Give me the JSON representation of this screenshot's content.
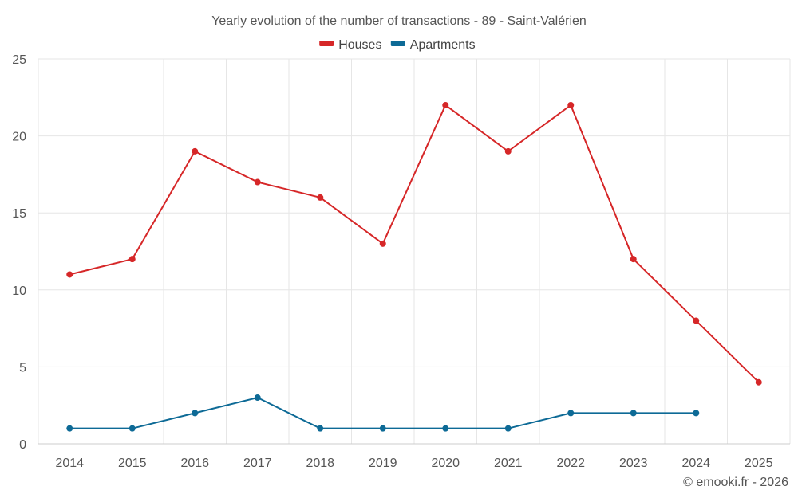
{
  "chart_data": {
    "type": "line",
    "title": "Yearly evolution of the number of transactions - 89 - Saint-Valérien",
    "xlabel": "",
    "ylabel": "",
    "categories": [
      "2014",
      "2015",
      "2016",
      "2017",
      "2018",
      "2019",
      "2020",
      "2021",
      "2022",
      "2023",
      "2024",
      "2025"
    ],
    "ylim": [
      0,
      25
    ],
    "yticks": [
      0,
      5,
      10,
      15,
      20,
      25
    ],
    "grid": true,
    "legend_position": "top-center",
    "series": [
      {
        "name": "Houses",
        "color": "#d62728",
        "values": [
          11,
          12,
          19,
          17,
          16,
          13,
          22,
          19,
          22,
          12,
          8,
          4
        ]
      },
      {
        "name": "Apartments",
        "color": "#0d6a96",
        "values": [
          1,
          1,
          2,
          3,
          1,
          1,
          1,
          1,
          2,
          2,
          2,
          null
        ]
      }
    ]
  },
  "footer": {
    "copyright": "© emooki.fr - 2026"
  }
}
